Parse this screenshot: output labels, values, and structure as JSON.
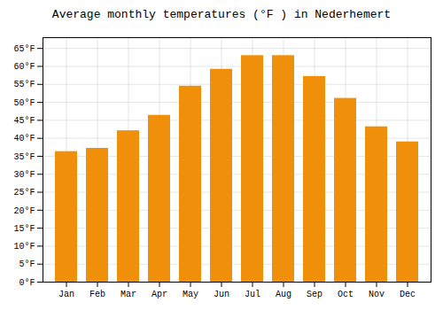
{
  "chart_data": {
    "type": "bar",
    "title": "Average monthly temperatures (°F ) in Nederhemert",
    "categories": [
      "Jan",
      "Feb",
      "Mar",
      "Apr",
      "May",
      "Jun",
      "Jul",
      "Aug",
      "Sep",
      "Oct",
      "Nov",
      "Dec"
    ],
    "values": [
      36.3,
      37.2,
      42.1,
      46.4,
      54.5,
      59.2,
      63.0,
      63.0,
      57.2,
      51.1,
      43.2,
      39.0
    ],
    "color": "#F0900A",
    "ylim": [
      0,
      68
    ],
    "yticks": [
      {
        "value": 0,
        "label": "0°F"
      },
      {
        "value": 5,
        "label": "5°F"
      },
      {
        "value": 10,
        "label": "10°F"
      },
      {
        "value": 15,
        "label": "15°F"
      },
      {
        "value": 20,
        "label": "20°F"
      },
      {
        "value": 25,
        "label": "25°F"
      },
      {
        "value": 30,
        "label": "30°F"
      },
      {
        "value": 35,
        "label": "35°F"
      },
      {
        "value": 40,
        "label": "40°F"
      },
      {
        "value": 45,
        "label": "45°F"
      },
      {
        "value": 50,
        "label": "50°F"
      },
      {
        "value": 55,
        "label": "55°F"
      },
      {
        "value": 60,
        "label": "60°F"
      },
      {
        "value": 65,
        "label": "65°F"
      }
    ],
    "grid": true
  }
}
